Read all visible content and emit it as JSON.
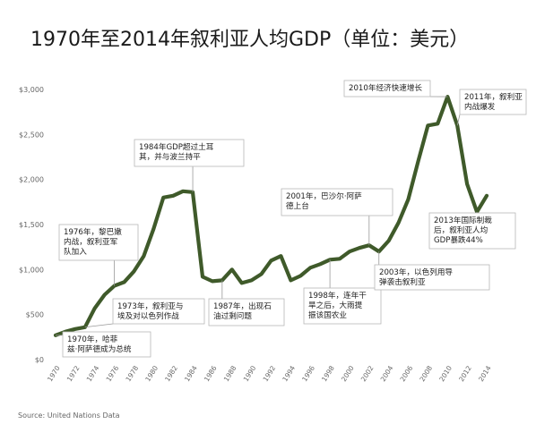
{
  "chart_data": {
    "type": "line",
    "title": "1970年至2014年叙利亚人均GDP（单位：美元）",
    "xlabel": "",
    "ylabel": "",
    "xlim": [
      1970,
      2014
    ],
    "ylim": [
      0,
      3000
    ],
    "y_ticks": [
      0,
      500,
      1000,
      1500,
      2000,
      2500,
      3000
    ],
    "y_tick_labels": [
      "$0",
      "$500",
      "$1,000",
      "$1,500",
      "$2,000",
      "$2,500",
      "$3,000"
    ],
    "x_ticks": [
      1970,
      1972,
      1974,
      1976,
      1978,
      1980,
      1982,
      1984,
      1986,
      1988,
      1990,
      1992,
      1994,
      1996,
      1998,
      2000,
      2002,
      2004,
      2006,
      2008,
      2010,
      2012,
      2014
    ],
    "grid": false,
    "line_color": "#3f5a2a",
    "series": [
      {
        "name": "",
        "x": [
          1970,
          1971,
          1972,
          1973,
          1974,
          1975,
          1976,
          1977,
          1978,
          1979,
          1980,
          1981,
          1982,
          1983,
          1984,
          1985,
          1986,
          1987,
          1988,
          1989,
          1990,
          1991,
          1992,
          1993,
          1994,
          1995,
          1996,
          1997,
          1998,
          1999,
          2000,
          2001,
          2002,
          2003,
          2004,
          2005,
          2006,
          2007,
          2008,
          2009,
          2010,
          2011,
          2012,
          2013,
          2014
        ],
        "values": [
          270,
          310,
          340,
          360,
          570,
          720,
          820,
          860,
          980,
          1150,
          1450,
          1800,
          1820,
          1870,
          1860,
          920,
          870,
          880,
          1000,
          850,
          880,
          950,
          1100,
          1150,
          880,
          930,
          1020,
          1060,
          1110,
          1120,
          1200,
          1240,
          1270,
          1200,
          1320,
          1520,
          1780,
          2200,
          2600,
          2620,
          2920,
          2600,
          1950,
          1640,
          1820
        ]
      }
    ],
    "annotations": [
      {
        "key": "a1970",
        "year": 1970,
        "lines": [
          "1970年，哈菲",
          "兹·阿萨德成为总统"
        ]
      },
      {
        "key": "a1973",
        "year": 1973,
        "lines": [
          "1973年，叙利亚与",
          "埃及对以色列作战"
        ]
      },
      {
        "key": "a1976",
        "year": 1976,
        "lines": [
          "1976年，黎巴嫩",
          "内战，叙利亚军",
          "队加入"
        ]
      },
      {
        "key": "a1984",
        "year": 1984,
        "lines": [
          "1984年GDP超过土耳",
          "其，并与波兰持平"
        ]
      },
      {
        "key": "a1987",
        "year": 1987,
        "lines": [
          "1987年，出现石",
          "油过剩问题"
        ]
      },
      {
        "key": "a1998",
        "year": 1998,
        "lines": [
          "1998年，连年干",
          "旱之后，大雨提",
          "振该国农业"
        ]
      },
      {
        "key": "a2001",
        "year": 2001,
        "lines": [
          "2001年，巴沙尔·阿萨",
          "德上台"
        ]
      },
      {
        "key": "a2003",
        "year": 2003,
        "lines": [
          "2003年，以色列用导",
          "弹袭击叙利亚"
        ]
      },
      {
        "key": "a2010",
        "year": 2010,
        "lines": [
          "2010年经济快速增长"
        ]
      },
      {
        "key": "a2011",
        "year": 2011,
        "lines": [
          "2011年，叙利亚",
          "内战爆发"
        ]
      },
      {
        "key": "a2013",
        "year": 2013,
        "lines": [
          "2013年国际制裁",
          "后，叙利亚人均",
          "GDP暴跌44%"
        ]
      }
    ],
    "source": "Source: United Nations Data"
  }
}
